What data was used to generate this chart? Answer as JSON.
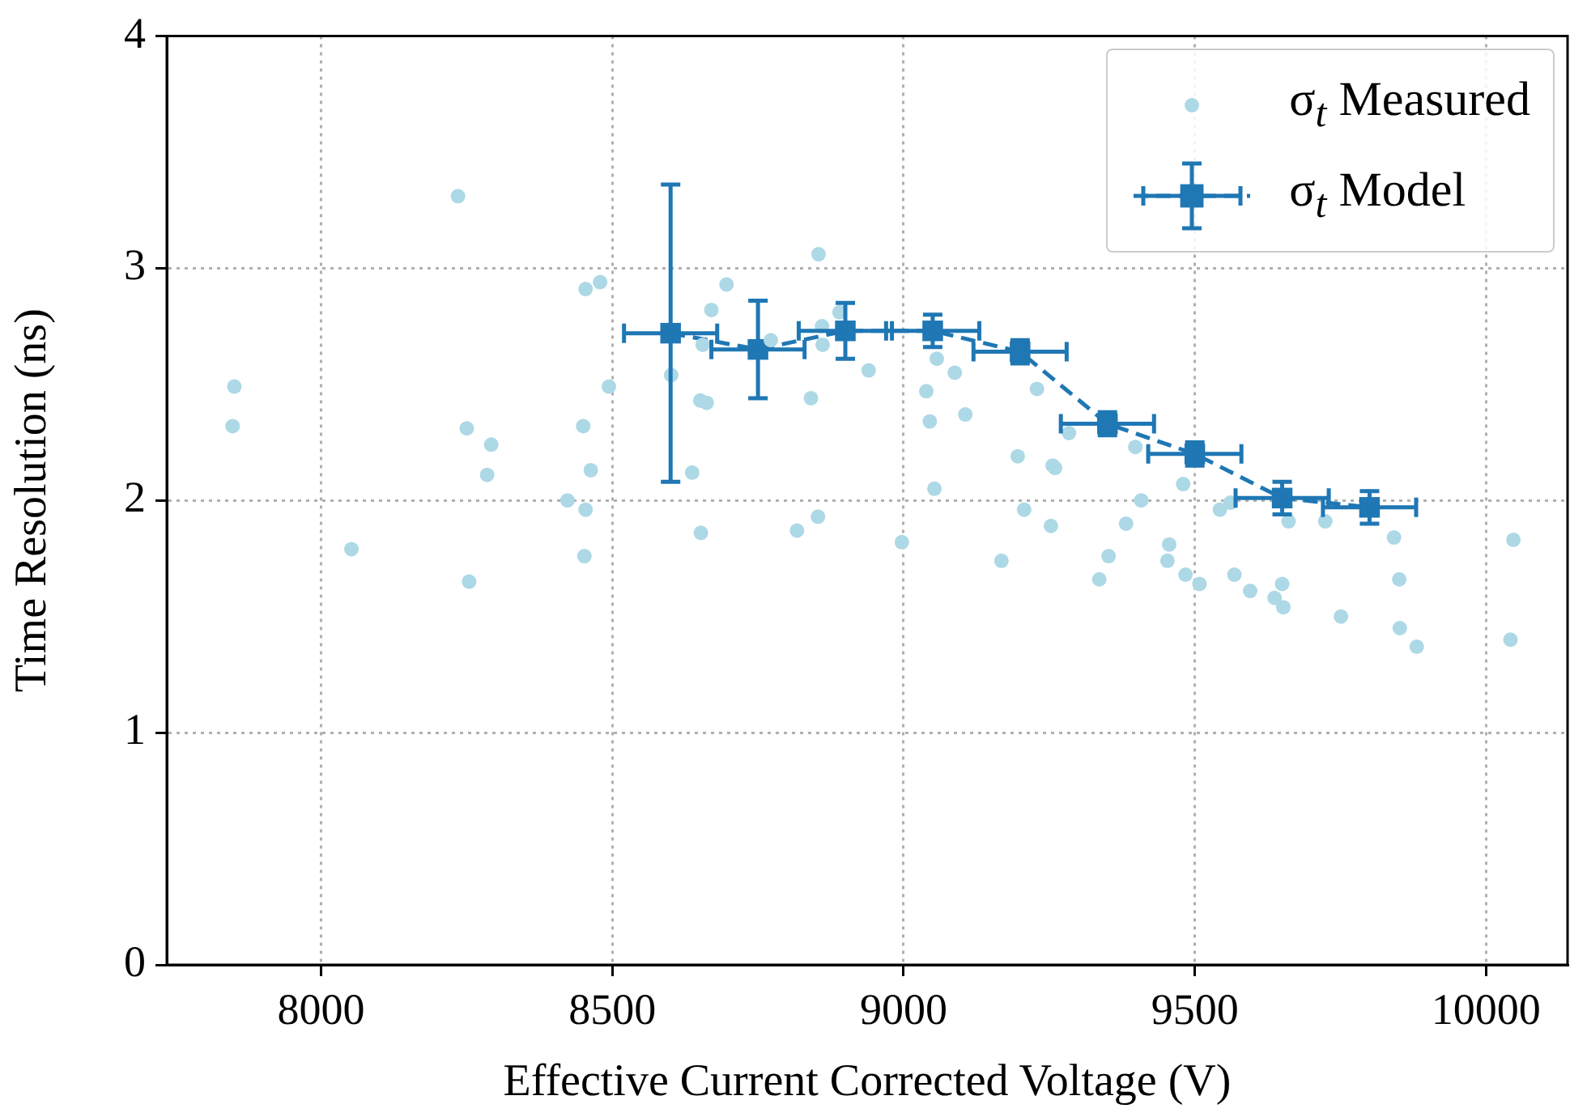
{
  "chart_data": {
    "type": "scatter",
    "xlabel": "Effective Current Corrected Voltage (V)",
    "ylabel": "Time Resolution (ns)",
    "xlim": [
      7735,
      10140
    ],
    "xticks": [
      8000,
      8500,
      9000,
      9500,
      10000
    ],
    "ylim": [
      0,
      4
    ],
    "yticks": [
      0,
      1,
      2,
      3,
      4
    ],
    "grid": true,
    "legend": "top right",
    "series": [
      {
        "name": "σ$_{t}$ Measured",
        "marker": "circle",
        "color": "#add8e6",
        "x": [
          7851,
          7848,
          8052,
          8235,
          8250,
          8292,
          8285,
          8254,
          8454,
          8479,
          8494,
          8450,
          8463,
          8423,
          8454,
          8452,
          8601,
          8637,
          8652,
          8655,
          8670,
          8696,
          8651,
          8662,
          8772,
          8817,
          8853,
          8841,
          8854,
          8860,
          8861,
          8890,
          8940,
          9057,
          9088,
          9039,
          9045,
          9106,
          9053,
          8997,
          9229,
          9284,
          9196,
          9256,
          9260,
          9207,
          9253,
          9168,
          9398,
          9480,
          9408,
          9382,
          9352,
          9336,
          9456,
          9453,
          9484,
          9508,
          9543,
          9561,
          9568,
          9595,
          9637,
          9650,
          9652,
          9661,
          9724,
          9751,
          9842,
          9851,
          9852,
          9881,
          10047,
          10042
        ],
        "values": [
          2.49,
          2.32,
          1.79,
          3.31,
          2.31,
          2.24,
          2.11,
          1.65,
          2.91,
          2.94,
          2.49,
          2.32,
          2.13,
          2.0,
          1.96,
          1.76,
          2.54,
          2.12,
          1.86,
          2.67,
          2.82,
          2.93,
          2.43,
          2.42,
          2.69,
          1.87,
          1.93,
          2.44,
          3.06,
          2.75,
          2.67,
          2.81,
          2.56,
          2.61,
          2.55,
          2.47,
          2.34,
          2.37,
          2.05,
          1.82,
          2.48,
          2.29,
          2.19,
          2.15,
          2.14,
          1.96,
          1.89,
          1.74,
          2.23,
          2.07,
          2.0,
          1.9,
          1.76,
          1.66,
          1.81,
          1.74,
          1.68,
          1.64,
          1.96,
          1.99,
          1.68,
          1.61,
          1.58,
          1.64,
          1.54,
          1.91,
          1.91,
          1.5,
          1.84,
          1.66,
          1.45,
          1.37,
          1.83,
          1.4
        ]
      },
      {
        "name": "σ$_{t}$ Model",
        "type": "line",
        "marker": "square",
        "line_style": "dashed",
        "color": "#1f77b4",
        "x": [
          8600,
          8750,
          8900,
          9050,
          9200,
          9350,
          9500,
          9650,
          9800
        ],
        "values": [
          2.72,
          2.65,
          2.73,
          2.73,
          2.64,
          2.33,
          2.2,
          2.01,
          1.97
        ],
        "errors": [
          0.64,
          0.21,
          0.12,
          0.07,
          0.05,
          0.05,
          0.05,
          0.07,
          0.07
        ],
        "xerrors": [
          80,
          80,
          80,
          80,
          80,
          80,
          80,
          80,
          80
        ]
      }
    ]
  }
}
